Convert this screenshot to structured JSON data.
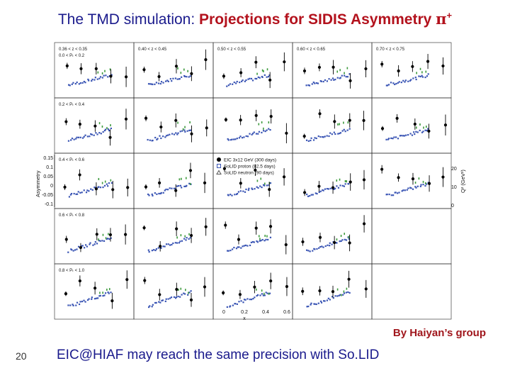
{
  "title": {
    "plain": "The TMD simulation: ",
    "highlight": "Projections for SIDIS Asymmetry ",
    "pi": "π",
    "superscript": "+"
  },
  "column_labels": [
    "0.36 < z < 0.35",
    "0.40 < z < 0.45",
    "0.50 < z < 0.55",
    "0.60 < z < 0.65",
    "0.70 < z < 0.75"
  ],
  "row_labels": [
    "0.0 < Pₜ < 0.2",
    "0.2 < Pₜ < 0.4",
    "0.4 < Pₜ < 0.6",
    "0.6 < Pₜ < 0.8",
    "0.8 < Pₜ < 1.0"
  ],
  "legend": [
    "EIC 3x12 GeV (300 days)",
    "SoLID proton (82.5 days)",
    "SoLID neutron (90 days)"
  ],
  "y_axis": {
    "label": "Asymmetry",
    "ticks": [
      "0.15",
      "0.1",
      "0.05",
      "0",
      "-0.05",
      "-0.1"
    ]
  },
  "right_axis": {
    "label": "Q² (GeV²)",
    "ticks": [
      "20",
      "10",
      "0"
    ]
  },
  "x_axis": {
    "label": "x",
    "ticks": [
      "0",
      "0.2",
      "0.4",
      "0.6"
    ]
  },
  "byline": "By Haiyan’s group",
  "slide_number": "20",
  "footer": "EIC@HIAF  may reach the same precision with So.LID",
  "colors": {
    "title": "#1a1a8c",
    "highlight": "#b3121d",
    "eic": "#000000",
    "solid_proton": "#3a55b4",
    "solid_neutron": "#3c9a3c"
  }
}
